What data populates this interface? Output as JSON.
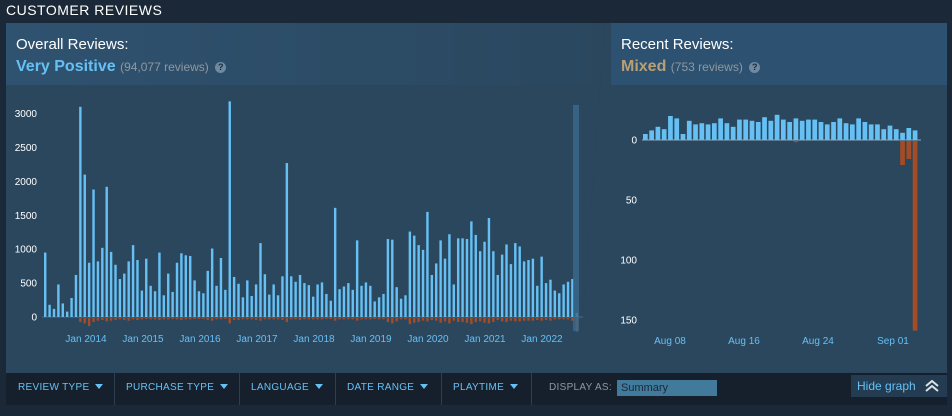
{
  "section_title": "CUSTOMER REVIEWS",
  "overall": {
    "label": "Overall Reviews:",
    "rating": "Very Positive",
    "count": "(94,077 reviews)",
    "rating_color": "#66c0f4",
    "help_icon": "question-mark-icon"
  },
  "recent": {
    "label": "Recent Reviews:",
    "rating": "Mixed",
    "count": "(753 reviews)",
    "rating_color": "#b9a074",
    "help_icon": "question-mark-icon"
  },
  "filters": {
    "review_type": "REVIEW TYPE",
    "purchase_type": "PURCHASE TYPE",
    "language": "LANGUAGE",
    "date_range": "DATE RANGE",
    "playtime": "PLAYTIME",
    "display_as_label": "DISPLAY AS:",
    "display_as_value": "Summary",
    "hide_graph": "Hide graph"
  },
  "colors": {
    "positive": "#66c0f4",
    "negative": "#a34c25"
  },
  "chart_data": [
    {
      "type": "bar",
      "y_ticks": [
        "3000",
        "2500",
        "2000",
        "1500",
        "1000",
        "500",
        "0"
      ],
      "x_ticks": [
        "Jan 2014",
        "Jan 2015",
        "Jan 2016",
        "Jan 2017",
        "Jan 2018",
        "Jan 2019",
        "Jan 2020",
        "Jan 2021",
        "Jan 2022"
      ],
      "ylim": [
        0,
        3200
      ],
      "series": [
        {
          "values": [
            950,
            180,
            120,
            480,
            200,
            80,
            280,
            620,
            3100,
            2100,
            800,
            1880,
            820,
            1020,
            1920,
            960,
            770,
            560,
            640,
            820,
            1060,
            840,
            390,
            860,
            460,
            380,
            950,
            320,
            640,
            370,
            800,
            940,
            910,
            900,
            540,
            380,
            350,
            680,
            1010,
            460,
            870,
            400,
            3180,
            590,
            490,
            290,
            540,
            310,
            480,
            1090,
            630,
            330,
            480,
            320,
            600,
            2270,
            600,
            520,
            620,
            500,
            470,
            300,
            480,
            510,
            340,
            240,
            1610,
            410,
            450,
            500,
            400,
            1130,
            460,
            510,
            460,
            230,
            290,
            340,
            1150,
            1140,
            440,
            270,
            320,
            1260,
            1200,
            1060,
            990,
            1550,
            620,
            790,
            1130,
            860,
            1220,
            480,
            1160,
            1160,
            1150,
            1410,
            1210,
            970,
            1110,
            1460,
            970,
            620,
            920,
            1070,
            780,
            1090,
            1040,
            820,
            840,
            860,
            460,
            890,
            500,
            550,
            390,
            350,
            480,
            520,
            560,
            60
          ]
        },
        {
          "values": [
            0,
            0,
            0,
            0,
            0,
            0,
            0,
            0,
            60,
            80,
            120,
            60,
            40,
            30,
            50,
            40,
            30,
            20,
            30,
            40,
            20,
            30,
            20,
            10,
            20,
            20,
            30,
            20,
            20,
            15,
            20,
            30,
            20,
            20,
            10,
            10,
            10,
            30,
            40,
            20,
            20,
            10,
            80,
            30,
            30,
            20,
            20,
            20,
            30,
            40,
            20,
            20,
            20,
            20,
            30,
            60,
            20,
            20,
            30,
            20,
            20,
            20,
            20,
            20,
            15,
            10,
            40,
            20,
            20,
            20,
            20,
            40,
            20,
            20,
            20,
            15,
            20,
            20,
            60,
            80,
            50,
            20,
            20,
            90,
            70,
            60,
            40,
            50,
            30,
            40,
            70,
            50,
            80,
            40,
            60,
            60,
            70,
            90,
            60,
            50,
            70,
            80,
            60,
            30,
            50,
            60,
            40,
            50,
            50,
            40,
            40,
            40,
            30,
            40,
            30,
            40,
            20,
            20,
            20,
            20,
            40,
            200
          ]
        }
      ]
    },
    {
      "type": "bar",
      "y_ticks": [
        "0",
        "50",
        "100",
        "150"
      ],
      "x_ticks": [
        "Aug 08",
        "Aug 16",
        "Aug 24",
        "Sep 01"
      ],
      "ylim": [
        -25,
        160
      ],
      "series": [
        {
          "values": [
            5,
            8,
            11,
            9,
            20,
            18,
            5,
            16,
            13,
            14,
            13,
            14,
            18,
            14,
            11,
            17,
            17,
            16,
            15,
            19,
            16,
            21,
            17,
            15,
            18,
            16,
            17,
            17,
            15,
            13,
            15,
            18,
            14,
            13,
            18,
            15,
            13,
            13,
            9,
            12,
            9,
            6,
            10,
            8
          ]
        },
        {
          "values": [
            0,
            0,
            0,
            0,
            0,
            0,
            0,
            0,
            0,
            0,
            0,
            0,
            0,
            0,
            0,
            0,
            0,
            0,
            0,
            0,
            0,
            0,
            0,
            0,
            1,
            0,
            0,
            0,
            0,
            0,
            0,
            0,
            0,
            0,
            0,
            0,
            0,
            0,
            0,
            0,
            0,
            20,
            15,
            158
          ]
        }
      ]
    }
  ]
}
